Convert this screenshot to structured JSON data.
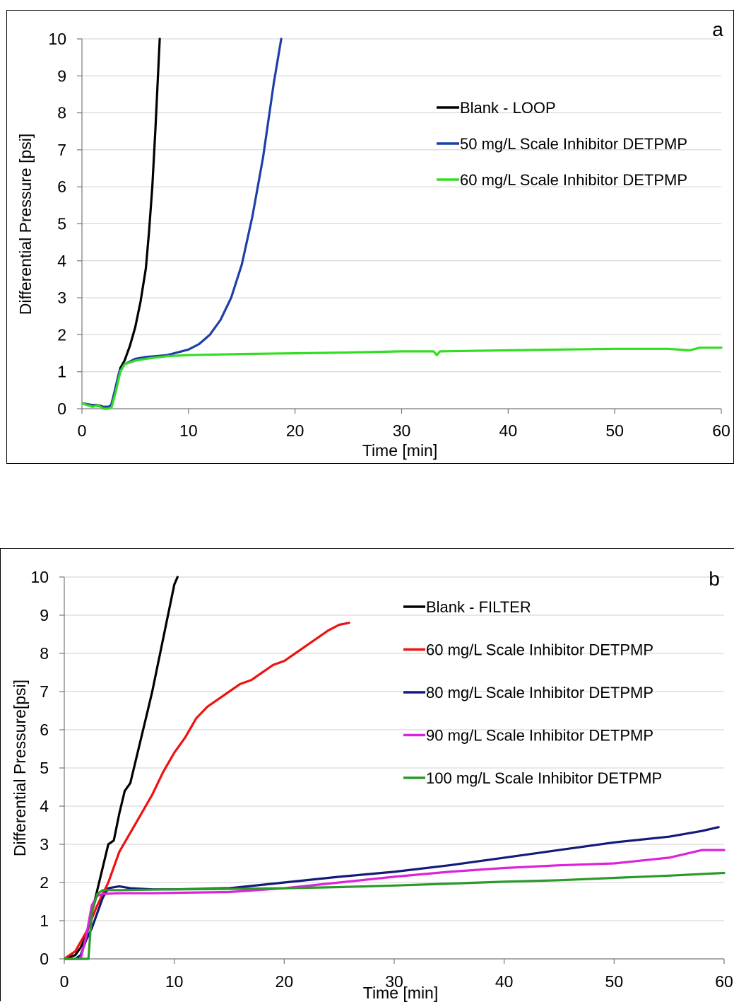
{
  "chart_data": [
    {
      "type": "line",
      "panel_label": "a",
      "xlabel": "Time [min]",
      "ylabel": "Differential Pressure [psi]",
      "xlim": [
        0,
        60
      ],
      "ylim": [
        0,
        10
      ],
      "xticks": [
        0,
        10,
        20,
        30,
        40,
        50,
        60
      ],
      "yticks": [
        0,
        1,
        2,
        3,
        4,
        5,
        6,
        7,
        8,
        9,
        10
      ],
      "grid": "horizontal",
      "legend_position": "top-right",
      "series": [
        {
          "name": "Blank - LOOP",
          "color": "#000000",
          "x": [
            0,
            0.5,
            1,
            1.5,
            2,
            2.5,
            2.8,
            3.2,
            3.6,
            4,
            4.5,
            5,
            5.5,
            6,
            6.3,
            6.6,
            6.9,
            7.1,
            7.3
          ],
          "y": [
            0.15,
            0.1,
            0.1,
            0.1,
            0.05,
            0.05,
            0.1,
            0.5,
            1.1,
            1.3,
            1.7,
            2.2,
            2.9,
            3.8,
            4.8,
            6.0,
            7.6,
            8.8,
            10
          ]
        },
        {
          "name": "50 mg/L Scale Inhibitor DETPMP",
          "color": "#1f3fa8",
          "x": [
            0,
            1,
            2,
            2.7,
            3,
            3.5,
            4,
            5,
            6,
            8,
            10,
            11,
            12,
            13,
            14,
            15,
            16,
            17,
            18,
            18.7
          ],
          "y": [
            0.15,
            0.1,
            0.05,
            0.05,
            0.4,
            1.0,
            1.2,
            1.35,
            1.4,
            1.45,
            1.6,
            1.75,
            2.0,
            2.4,
            3.0,
            3.9,
            5.2,
            6.8,
            8.8,
            10
          ]
        },
        {
          "name": "60 mg/L Scale Inhibitor DETPMP",
          "color": "#33dd22",
          "x": [
            0,
            0.5,
            1,
            1.5,
            2,
            2.5,
            2.8,
            3.2,
            3.6,
            4,
            5,
            6,
            8,
            10,
            15,
            20,
            25,
            30,
            33,
            33.3,
            33.6,
            40,
            45,
            50,
            55,
            57,
            58,
            60
          ],
          "y": [
            0.15,
            0.1,
            0.05,
            0.1,
            0.0,
            0.0,
            0.05,
            0.5,
            1.0,
            1.2,
            1.3,
            1.35,
            1.42,
            1.45,
            1.48,
            1.5,
            1.52,
            1.55,
            1.55,
            1.45,
            1.55,
            1.58,
            1.6,
            1.62,
            1.62,
            1.58,
            1.65,
            1.65
          ]
        }
      ]
    },
    {
      "type": "line",
      "panel_label": "b",
      "xlabel": "Time [min]",
      "ylabel": "Differential Pressure[psi]",
      "xlim": [
        0,
        60
      ],
      "ylim": [
        0,
        10
      ],
      "xticks": [
        0,
        10,
        20,
        30,
        40,
        50,
        60
      ],
      "yticks": [
        0,
        1,
        2,
        3,
        4,
        5,
        6,
        7,
        8,
        9,
        10
      ],
      "grid": "horizontal",
      "legend_position": "top-right",
      "series": [
        {
          "name": "Blank - FILTER",
          "color": "#000000",
          "x": [
            0,
            1,
            1.5,
            2,
            2.5,
            3,
            3.5,
            4,
            4.5,
            5,
            5.5,
            6,
            6.5,
            7,
            7.5,
            8,
            8.5,
            9,
            9.5,
            10,
            10.3
          ],
          "y": [
            0,
            0.1,
            0.3,
            0.6,
            1.2,
            1.8,
            2.4,
            3.0,
            3.1,
            3.8,
            4.4,
            4.6,
            5.2,
            5.8,
            6.4,
            7.0,
            7.7,
            8.4,
            9.1,
            9.8,
            10
          ]
        },
        {
          "name": "60 mg/L Scale Inhibitor DETPMP",
          "color": "#ee1111",
          "x": [
            0,
            1,
            2,
            3,
            4,
            5,
            6,
            7,
            8,
            9,
            10,
            11,
            12,
            13,
            14,
            15,
            16,
            17,
            18,
            19,
            20,
            21,
            22,
            23,
            24,
            25,
            25.9
          ],
          "y": [
            0,
            0.2,
            0.7,
            1.4,
            2.0,
            2.8,
            3.3,
            3.8,
            4.3,
            4.9,
            5.4,
            5.8,
            6.3,
            6.6,
            6.8,
            7.0,
            7.2,
            7.3,
            7.5,
            7.7,
            7.8,
            8.0,
            8.2,
            8.4,
            8.6,
            8.75,
            8.8
          ]
        },
        {
          "name": "80 mg/L Scale Inhibitor DETPMP",
          "color": "#121a7a",
          "x": [
            0,
            1,
            1.5,
            2,
            2.5,
            3,
            3.5,
            4,
            5,
            6,
            8,
            10,
            15,
            20,
            25,
            30,
            35,
            40,
            45,
            50,
            55,
            58,
            59.5
          ],
          "y": [
            0,
            0.0,
            0.1,
            0.5,
            0.8,
            1.2,
            1.6,
            1.85,
            1.9,
            1.85,
            1.82,
            1.82,
            1.85,
            2.0,
            2.15,
            2.28,
            2.45,
            2.65,
            2.85,
            3.05,
            3.2,
            3.35,
            3.45
          ]
        },
        {
          "name": "90 mg/L Scale Inhibitor DETPMP",
          "color": "#dd22dd",
          "x": [
            0,
            1.5,
            2,
            2.5,
            3,
            3.5,
            5,
            8,
            10,
            15,
            20,
            25,
            30,
            35,
            40,
            45,
            50,
            55,
            58,
            60
          ],
          "y": [
            0,
            0.0,
            0.6,
            1.4,
            1.65,
            1.7,
            1.72,
            1.72,
            1.73,
            1.75,
            1.85,
            2.0,
            2.15,
            2.28,
            2.38,
            2.45,
            2.5,
            2.65,
            2.85,
            2.85
          ]
        },
        {
          "name": "100 mg/L Scale Inhibitor DETPMP",
          "color": "#2a9a2a",
          "x": [
            0,
            1,
            2,
            2.2,
            2.5,
            3,
            3.5,
            5,
            10,
            15,
            20,
            25,
            30,
            35,
            40,
            45,
            50,
            55,
            60
          ],
          "y": [
            0,
            0,
            0,
            0,
            1.2,
            1.7,
            1.8,
            1.8,
            1.82,
            1.83,
            1.85,
            1.88,
            1.92,
            1.97,
            2.02,
            2.06,
            2.12,
            2.18,
            2.25
          ]
        }
      ]
    }
  ]
}
